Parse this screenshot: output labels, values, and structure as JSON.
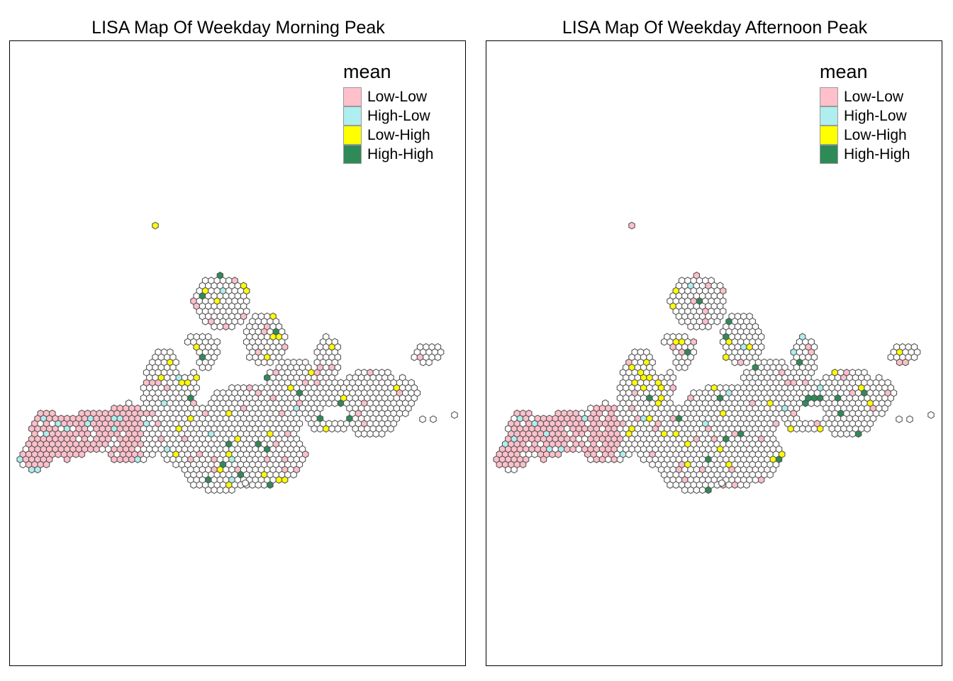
{
  "panels": [
    {
      "title": "LISA Map Of Weekday Morning Peak",
      "legend": {
        "title": "mean",
        "items": [
          {
            "label": "Low-Low",
            "color": "#FFC0CB"
          },
          {
            "label": "High-Low",
            "color": "#AFEEEE"
          },
          {
            "label": "Low-High",
            "color": "#FFFF00"
          },
          {
            "label": "High-High",
            "color": "#2E8B57"
          }
        ]
      }
    },
    {
      "title": "LISA Map Of Weekday Afternoon Peak",
      "legend": {
        "title": "mean",
        "items": [
          {
            "label": "Low-Low",
            "color": "#FFC0CB"
          },
          {
            "label": "High-Low",
            "color": "#AFEEEE"
          },
          {
            "label": "Low-High",
            "color": "#FFFF00"
          },
          {
            "label": "High-High",
            "color": "#2E8B57"
          }
        ]
      }
    }
  ],
  "colors": {
    "insignificant_fill": "#FFFFFF",
    "hex_border": "#555555"
  }
}
